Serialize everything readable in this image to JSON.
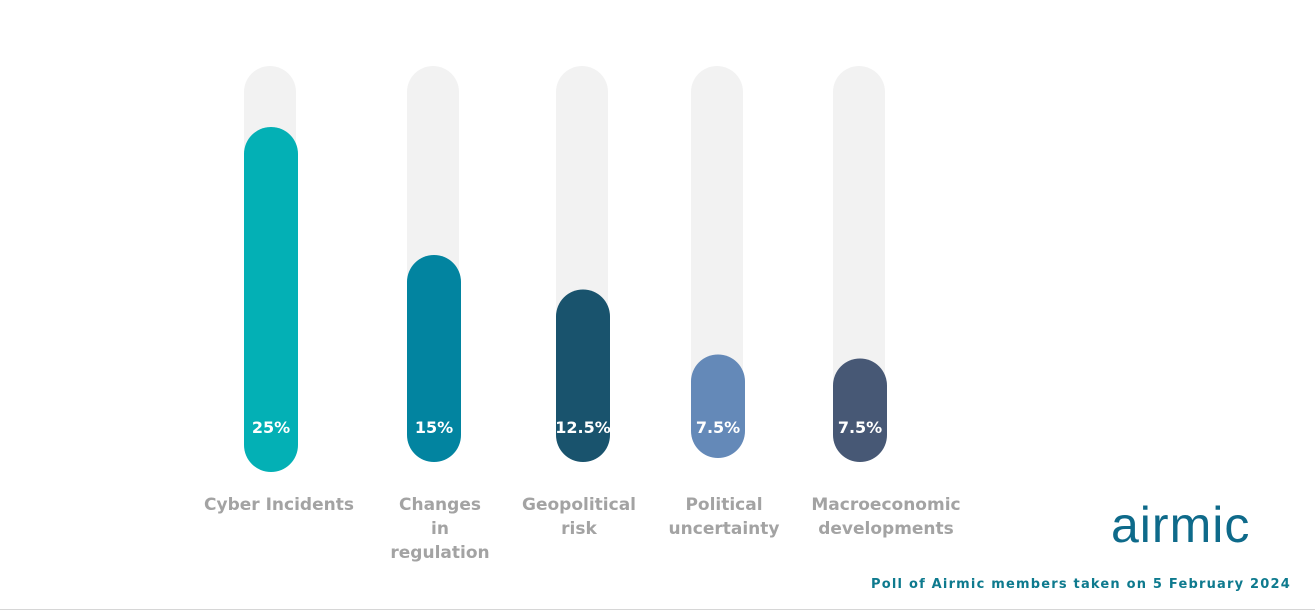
{
  "chart_data": {
    "type": "bar",
    "categories": [
      "Cyber Incidents",
      "Changes in regulation",
      "Geopolitical risk",
      "Political uncertainty",
      "Macroeconomic developments"
    ],
    "category_lines": [
      [
        "Cyber Incidents"
      ],
      [
        "Changes",
        "in",
        "regulation"
      ],
      [
        "Geopolitical",
        "risk"
      ],
      [
        "Political",
        "uncertainty"
      ],
      [
        "Macroeconomic",
        "developments"
      ]
    ],
    "values": [
      25,
      15,
      12.5,
      7.5,
      7.5
    ],
    "value_labels": [
      "25%",
      "15%",
      "12.5%",
      "7.5%",
      "7.5%"
    ],
    "colors": [
      "#03b0b5",
      "#0284a0",
      "#19536d",
      "#6489b8",
      "#475875"
    ],
    "track_color": "#f2f2f2",
    "value_unit": "%"
  },
  "brand": {
    "logo_text": "airmic"
  },
  "footnote": "Poll of Airmic members taken on 5 February 2024"
}
